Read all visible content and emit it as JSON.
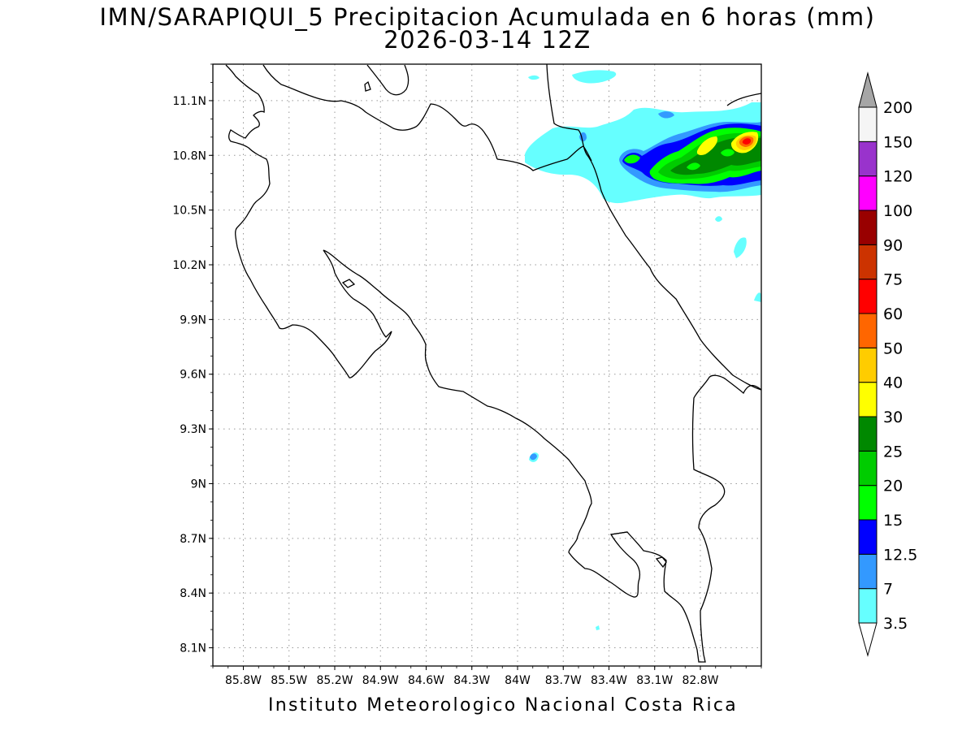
{
  "title": {
    "line1": "IMN/SARAPIQUI_5 Precipitacion Acumulada en 6 horas (mm)",
    "line2": "2026-03-14 12Z"
  },
  "credit": "Instituto Meteorologico Nacional Costa Rica",
  "map": {
    "lon_range": [
      -86.0,
      -82.4
    ],
    "lat_range": [
      8.0,
      11.3
    ],
    "lon_ticks": [
      {
        "value": -85.8,
        "label": "85.8W"
      },
      {
        "value": -85.5,
        "label": "85.5W"
      },
      {
        "value": -85.2,
        "label": "85.2W"
      },
      {
        "value": -84.9,
        "label": "84.9W"
      },
      {
        "value": -84.6,
        "label": "84.6W"
      },
      {
        "value": -84.3,
        "label": "84.3W"
      },
      {
        "value": -84.0,
        "label": "84W"
      },
      {
        "value": -83.7,
        "label": "83.7W"
      },
      {
        "value": -83.4,
        "label": "83.4W"
      },
      {
        "value": -83.1,
        "label": "83.1W"
      },
      {
        "value": -82.8,
        "label": "82.8W"
      }
    ],
    "lat_ticks": [
      {
        "value": 11.1,
        "label": "11.1N"
      },
      {
        "value": 10.8,
        "label": "10.8N"
      },
      {
        "value": 10.5,
        "label": "10.5N"
      },
      {
        "value": 10.2,
        "label": "10.2N"
      },
      {
        "value": 9.9,
        "label": "9.9N"
      },
      {
        "value": 9.6,
        "label": "9.6N"
      },
      {
        "value": 9.3,
        "label": "9.3N"
      },
      {
        "value": 9.0,
        "label": "9N"
      },
      {
        "value": 8.7,
        "label": "8.7N"
      },
      {
        "value": 8.4,
        "label": "8.4N"
      },
      {
        "value": 8.1,
        "label": "8.1N"
      }
    ],
    "grid": "dotted",
    "coastline_color": "#000000"
  },
  "colorbar": {
    "boundary_labels": [
      "3.5",
      "7",
      "12.5",
      "15",
      "20",
      "25",
      "30",
      "40",
      "50",
      "60",
      "75",
      "90",
      "100",
      "120",
      "150",
      "200"
    ],
    "colors": [
      "#66ffff",
      "#3399ff",
      "#0000ff",
      "#00ff00",
      "#00cc00",
      "#008800",
      "#ffff00",
      "#ffcc00",
      "#ff6600",
      "#ff0000",
      "#cc3300",
      "#990000",
      "#ff00ff",
      "#9933cc",
      "#f5f5f5"
    ],
    "lower_triangle_color": "#ffffff",
    "upper_triangle_color": "#a6a6a6"
  },
  "precip_levels_mm": [
    3.5,
    7,
    12.5,
    15,
    20,
    25,
    30,
    40,
    50,
    60
  ],
  "peak_precip_location": {
    "lon": -82.55,
    "lat": 10.88
  }
}
